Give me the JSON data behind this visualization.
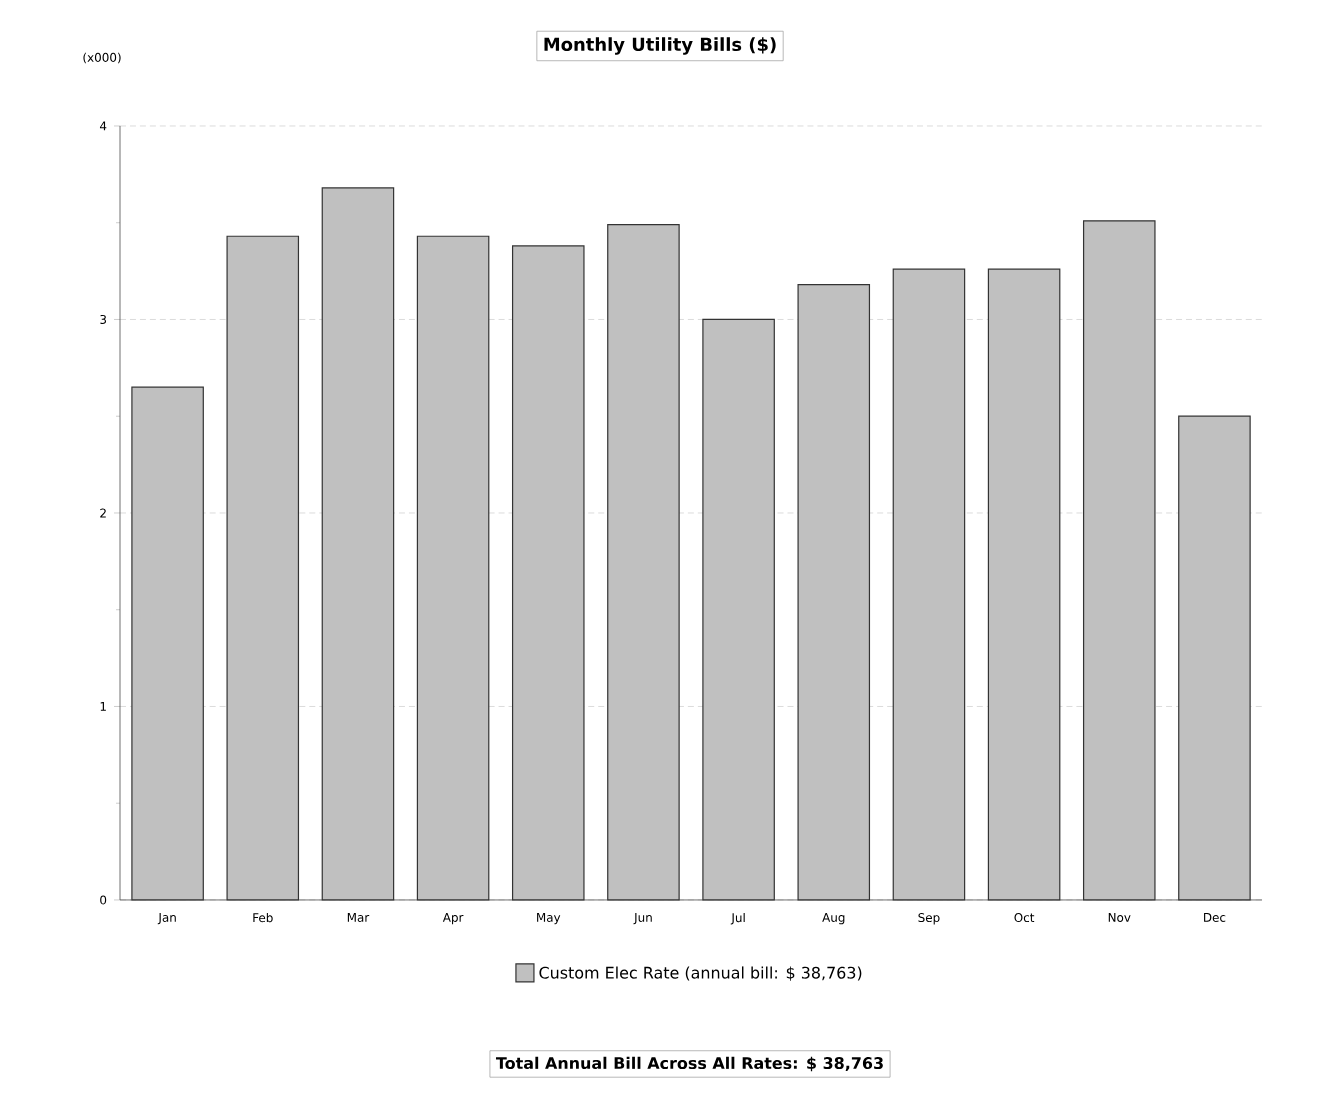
{
  "chart_data": {
    "type": "bar",
    "title": "Monthly Utility Bills ($)",
    "categories": [
      "Jan",
      "Feb",
      "Mar",
      "Apr",
      "May",
      "Jun",
      "Jul",
      "Aug",
      "Sep",
      "Oct",
      "Nov",
      "Dec"
    ],
    "series": [
      {
        "name": "Custom Elec Rate (annual bill: $ 38,763)",
        "color": "#c0c0c0",
        "values": [
          2.65,
          3.43,
          3.68,
          3.43,
          3.38,
          3.49,
          3.0,
          3.18,
          3.26,
          3.26,
          3.51,
          2.5
        ]
      }
    ],
    "ylim": [
      0,
      4
    ],
    "yticks": [
      0,
      {
        "value": 0.5,
        "label": null
      },
      1,
      {
        "value": 1.5,
        "label": null
      },
      2,
      {
        "value": 2.5,
        "label": null
      },
      3,
      {
        "value": 3.5,
        "label": null
      },
      4
    ],
    "grid": "y",
    "legend": "bottom",
    "annotations": [
      "(x000)",
      "Total Annual Bill Across All Rates:  $ 38,763"
    ]
  }
}
